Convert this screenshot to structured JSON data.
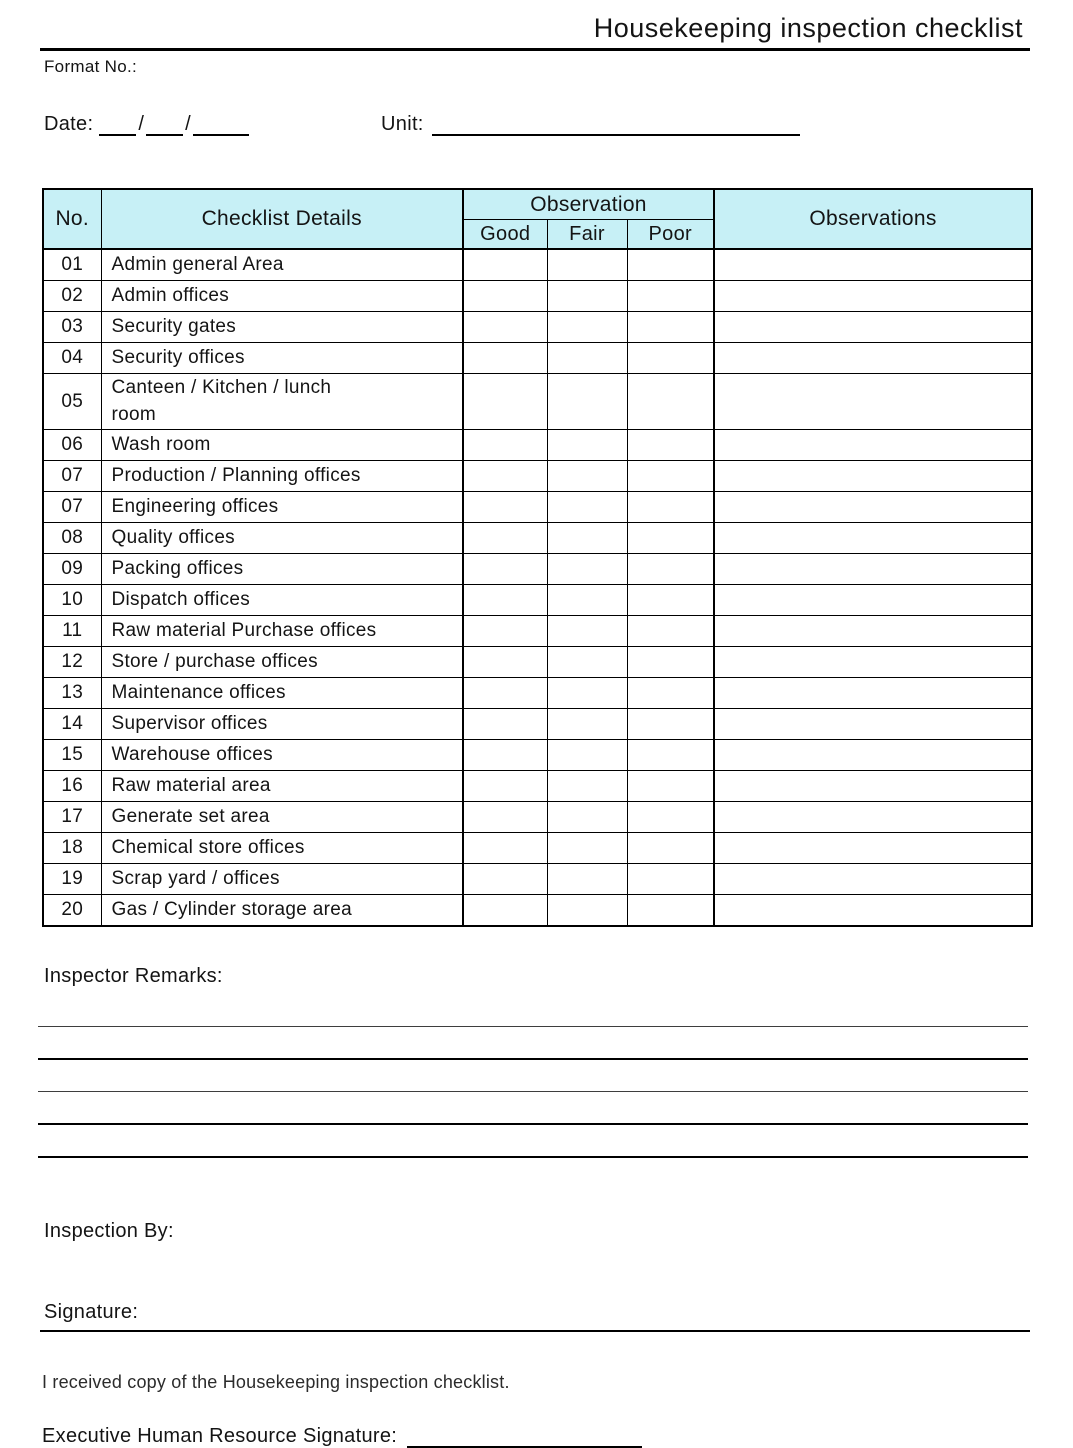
{
  "page": {
    "title": "Housekeeping inspection checklist",
    "format_no_label": "Format No.:"
  },
  "fields": {
    "date_label": "Date:",
    "date_slash": "/",
    "unit_label": "Unit:"
  },
  "table": {
    "headers": {
      "no": "No.",
      "details": "Checklist Details",
      "observation_group": "Observation",
      "good": "Good",
      "fair": "Fair",
      "poor": "Poor",
      "observations": "Observations"
    },
    "rows": [
      {
        "no": "01",
        "details": "Admin general Area"
      },
      {
        "no": "02",
        "details": "Admin offices"
      },
      {
        "no": "03",
        "details": "Security gates"
      },
      {
        "no": "04",
        "details": "Security offices"
      },
      {
        "no": "05",
        "details": "Canteen / Kitchen / lunch\nroom"
      },
      {
        "no": "06",
        "details": "Wash room"
      },
      {
        "no": "07",
        "details": "Production / Planning offices"
      },
      {
        "no": "07",
        "details": "Engineering offices"
      },
      {
        "no": "08",
        "details": "Quality offices"
      },
      {
        "no": "09",
        "details": "Packing offices"
      },
      {
        "no": "10",
        "details": "Dispatch offices"
      },
      {
        "no": "11",
        "details": "Raw material Purchase offices"
      },
      {
        "no": "12",
        "details": "Store / purchase offices"
      },
      {
        "no": "13",
        "details": "Maintenance offices"
      },
      {
        "no": "14",
        "details": "Supervisor offices"
      },
      {
        "no": "15",
        "details": "Warehouse offices"
      },
      {
        "no": "16",
        "details": "Raw material area"
      },
      {
        "no": "17",
        "details": "Generate set area"
      },
      {
        "no": "18",
        "details": "Chemical store offices"
      },
      {
        "no": "19",
        "details": "Scrap yard / offices"
      },
      {
        "no": "20",
        "details": "Gas / Cylinder storage area"
      }
    ]
  },
  "remarks": {
    "label": "Inspector Remarks:",
    "line_count": 5
  },
  "footer": {
    "inspection_by_label": "Inspection By:",
    "signature_label": "Signature:",
    "received_copy_text": "I received copy of the Housekeeping inspection checklist.",
    "executive_signature_label": "Executive Human Resource Signature:"
  },
  "colors": {
    "table_header_bg": "#c7f0f6",
    "border": "#000000"
  }
}
